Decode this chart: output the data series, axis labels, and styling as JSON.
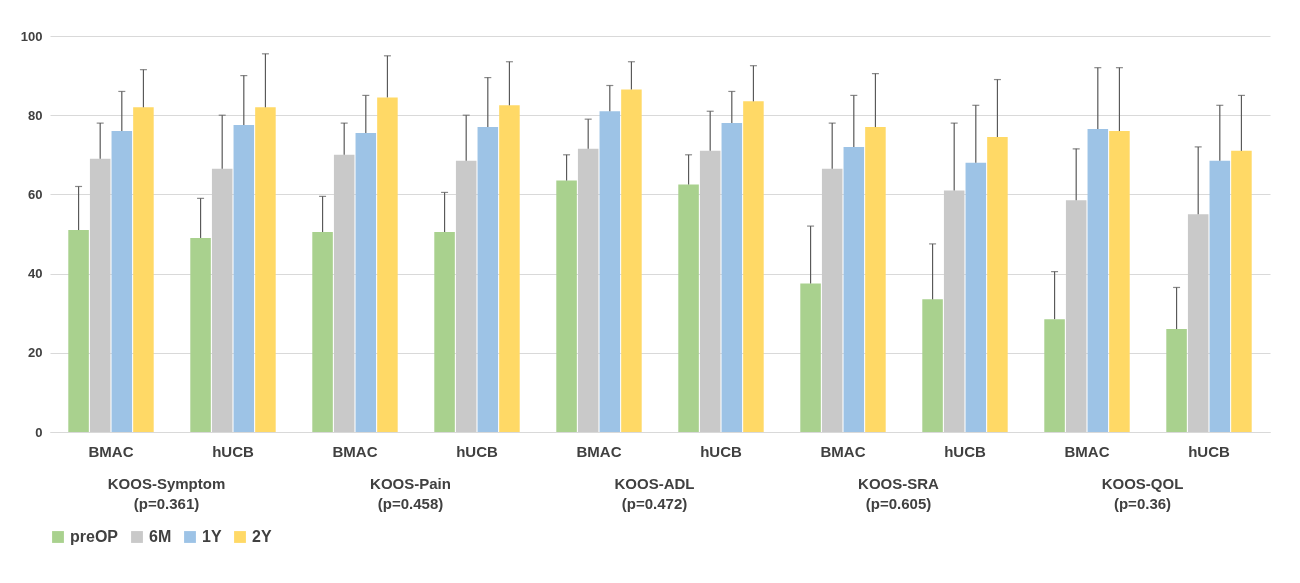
{
  "chart_data": {
    "type": "bar",
    "categories": [
      "BMAC",
      "hUCB",
      "BMAC",
      "hUCB",
      "BMAC",
      "hUCB",
      "BMAC",
      "hUCB",
      "BMAC",
      "hUCB"
    ],
    "series": [
      {
        "name": "preOP",
        "color": "#a9d18e",
        "values": [
          51,
          49,
          50.5,
          50.5,
          63.5,
          62.5,
          37.5,
          33.5,
          28.5,
          26
        ],
        "errors": [
          [
            51,
            62
          ],
          [
            49,
            59
          ],
          [
            50.5,
            59.5
          ],
          [
            50.5,
            60.5
          ],
          [
            63.5,
            70
          ],
          [
            62.5,
            70
          ],
          [
            37.5,
            52
          ],
          [
            33.5,
            47.5
          ],
          [
            28.5,
            40.5
          ],
          [
            26,
            36.5
          ]
        ]
      },
      {
        "name": "6M",
        "color": "#c9c9c9",
        "values": [
          69,
          66.5,
          70,
          68.5,
          71.5,
          71,
          66.5,
          61,
          58.5,
          55
        ],
        "errors": [
          [
            69,
            78
          ],
          [
            66.5,
            80
          ],
          [
            70,
            78
          ],
          [
            68.5,
            80
          ],
          [
            71.5,
            79
          ],
          [
            71,
            81
          ],
          [
            66.5,
            78
          ],
          [
            61,
            78
          ],
          [
            58.5,
            71.5
          ],
          [
            55,
            72
          ]
        ]
      },
      {
        "name": "1Y",
        "color": "#9dc3e6",
        "values": [
          76,
          77.5,
          75.5,
          77,
          81,
          78,
          72,
          68,
          76.5,
          68.5
        ],
        "errors": [
          [
            76,
            86
          ],
          [
            77.5,
            90
          ],
          [
            75.5,
            85
          ],
          [
            77,
            89.5
          ],
          [
            81,
            87.5
          ],
          [
            78,
            86
          ],
          [
            72,
            85
          ],
          [
            68,
            82.5
          ],
          [
            76.5,
            92
          ],
          [
            68.5,
            82.5
          ]
        ]
      },
      {
        "name": "2Y",
        "color": "#ffd966",
        "values": [
          82,
          82,
          84.5,
          82.5,
          86.5,
          83.5,
          77,
          74.5,
          76,
          71
        ],
        "errors": [
          [
            82,
            91.5
          ],
          [
            82,
            95.5
          ],
          [
            84.5,
            95
          ],
          [
            82.5,
            93.5
          ],
          [
            86.5,
            93.5
          ],
          [
            83.5,
            92.5
          ],
          [
            77,
            90.5
          ],
          [
            74.5,
            89
          ],
          [
            76,
            92
          ],
          [
            71,
            85
          ]
        ]
      }
    ],
    "annotations": [
      "KOOS-Symptom\n(p=0.361)",
      "KOOS-Pain\n(p=0.458)",
      "KOOS-ADL\n(p=0.472)",
      "KOOS-SRA\n(p=0.605)",
      "KOOS-QOL\n(p=0.36)"
    ],
    "ylim": [
      0,
      100
    ],
    "yticks": [
      0,
      20,
      40,
      60,
      80,
      100
    ],
    "grid": "y",
    "legend": "bottom"
  }
}
